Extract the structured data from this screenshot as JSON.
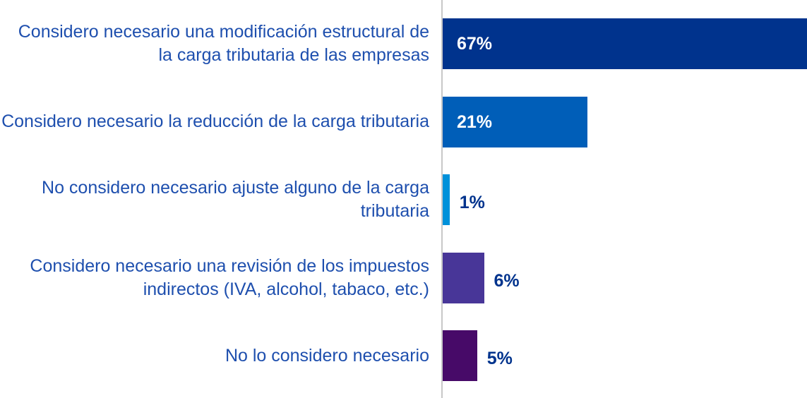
{
  "chart_data": {
    "type": "barh",
    "categories": [
      "Considero necesario una modificación estructural de la carga tributaria de las empresas",
      "Considero necesario la reducción de la carga tributaria",
      "No considero necesario ajuste alguno de la carga tributaria",
      "Considero necesario una revisión de los impuestos indirectos (IVA, alcohol, tabaco, etc.)",
      "No lo considero necesario"
    ],
    "values": [
      67,
      21,
      1,
      6,
      5
    ],
    "value_labels": [
      "67%",
      "21%",
      "1%",
      "6%",
      "5%"
    ],
    "colors": [
      "#00338d",
      "#005eb8",
      "#0091da",
      "#483698",
      "#470a68"
    ]
  }
}
